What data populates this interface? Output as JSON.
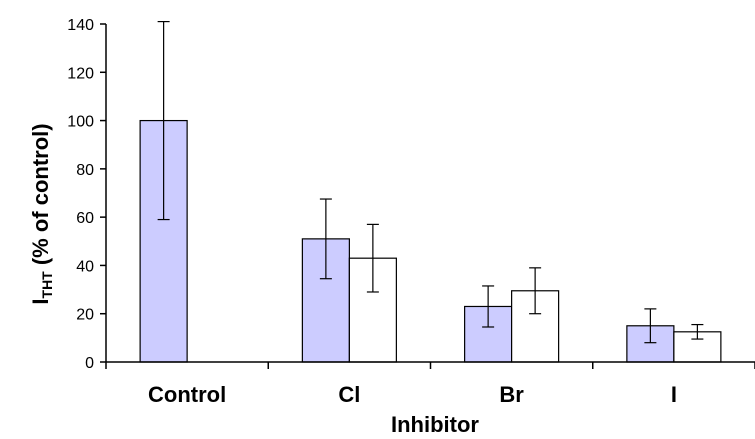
{
  "chart_data": {
    "type": "bar",
    "categories": [
      "Control",
      "Cl",
      "Br",
      "I"
    ],
    "series": [
      {
        "values": [
          100,
          51,
          23,
          15
        ],
        "errors": [
          41,
          16.5,
          8.5,
          7
        ],
        "color": "#ccccff"
      },
      {
        "values": [
          null,
          43,
          29.5,
          12.5
        ],
        "errors": [
          null,
          14,
          9.5,
          3
        ],
        "color": "#ffffff"
      }
    ],
    "xlabel": "Inhibitor",
    "ylabel_main": "I",
    "ylabel_sub": "THT",
    "ylabel_rest": " (% of control)",
    "ylim": [
      0,
      140
    ],
    "yticks": [
      0,
      20,
      40,
      60,
      80,
      100,
      120,
      140
    ],
    "grid": false,
    "legend": "none"
  }
}
